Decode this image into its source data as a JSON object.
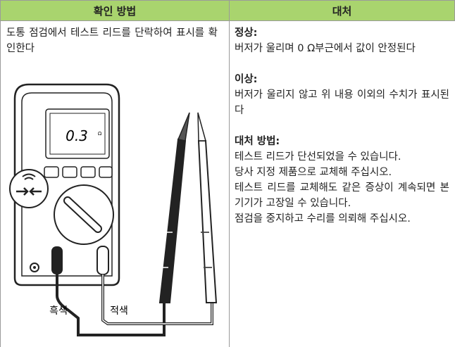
{
  "table": {
    "header": [
      "확인 방법",
      "대처"
    ],
    "left": {
      "text": "도통 점검에서 테스트 리드를 단락하여 표시를 확인한다",
      "illustration": {
        "display": "0.3",
        "unit": "Ω",
        "labels": [
          "흑색",
          "적색"
        ]
      }
    },
    "right": [
      {
        "heading": "정상:",
        "body": [
          "버저가 울리며 0 Ω부근에서 값이 안정된다"
        ]
      },
      {
        "heading": "이상:",
        "body": [
          "버저가 울리지 않고 위 내용 이외의 수치가 표시된다"
        ]
      },
      {
        "heading": "대처 방법:",
        "body": [
          "테스트 리드가 단선되었을 수 있습니다.",
          "당사 지정 제품으로 교체해 주십시오.",
          "테스트 리드를 교체해도 같은 증상이 계속되면 본 기기가 고장일 수 있습니다.",
          "점검을 중지하고 수리를 의뢰해 주십시오."
        ]
      }
    ]
  }
}
